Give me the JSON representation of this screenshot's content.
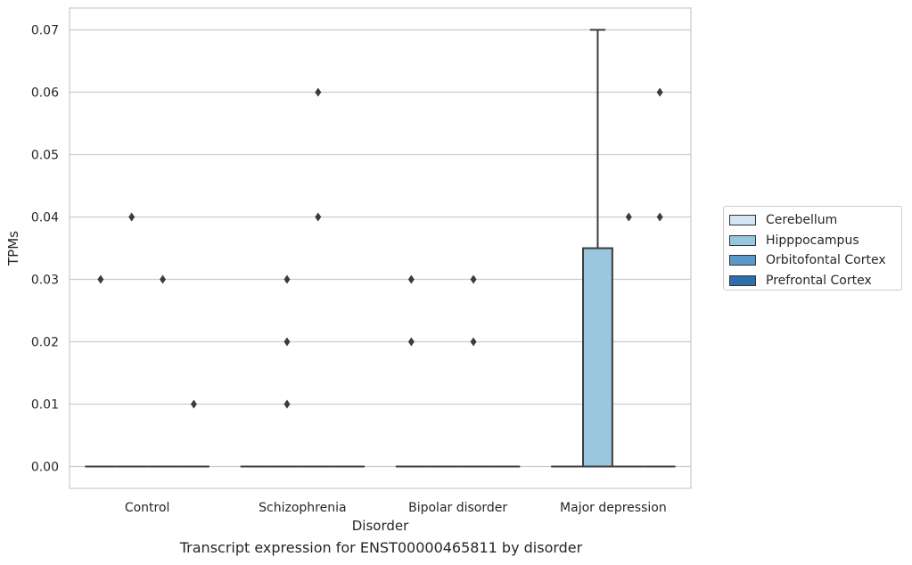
{
  "caption": "Transcript expression for ENST00000465811 by disorder",
  "chart_data": {
    "type": "box",
    "xlabel": "Disorder",
    "ylabel": "TPMs",
    "categories": [
      "Control",
      "Schizophrenia",
      "Bipolar disorder",
      "Major depression"
    ],
    "ylim": [
      -0.0035,
      0.0735
    ],
    "yticks": [
      "0.00",
      "0.01",
      "0.02",
      "0.03",
      "0.04",
      "0.05",
      "0.06",
      "0.07"
    ],
    "ytick_values": [
      0,
      0.01,
      0.02,
      0.03,
      0.04,
      0.05,
      0.06,
      0.07
    ],
    "grid": true,
    "legend_position": "outside-right",
    "series": [
      {
        "name": "Cerebellum",
        "color": "#d3e4f3"
      },
      {
        "name": "Hipppocampus",
        "color": "#9ac7e0"
      },
      {
        "name": "Orbitofontal Cortex",
        "color": "#5a9ac9"
      },
      {
        "name": "Prefrontal Cortex",
        "color": "#2c6fac"
      }
    ],
    "boxes": [
      {
        "category": "Control",
        "series": "Cerebellum",
        "q1": 0,
        "median": 0,
        "q3": 0,
        "whisker_low": 0,
        "whisker_high": 0,
        "outliers": [
          0.03
        ]
      },
      {
        "category": "Control",
        "series": "Hipppocampus",
        "q1": 0,
        "median": 0,
        "q3": 0,
        "whisker_low": 0,
        "whisker_high": 0,
        "outliers": [
          0.04
        ]
      },
      {
        "category": "Control",
        "series": "Orbitofontal Cortex",
        "q1": 0,
        "median": 0,
        "q3": 0,
        "whisker_low": 0,
        "whisker_high": 0,
        "outliers": [
          0.03
        ]
      },
      {
        "category": "Control",
        "series": "Prefrontal Cortex",
        "q1": 0,
        "median": 0,
        "q3": 0,
        "whisker_low": 0,
        "whisker_high": 0,
        "outliers": [
          0.01
        ]
      },
      {
        "category": "Schizophrenia",
        "series": "Cerebellum",
        "q1": 0,
        "median": 0,
        "q3": 0,
        "whisker_low": 0,
        "whisker_high": 0,
        "outliers": []
      },
      {
        "category": "Schizophrenia",
        "series": "Hipppocampus",
        "q1": 0,
        "median": 0,
        "q3": 0,
        "whisker_low": 0,
        "whisker_high": 0,
        "outliers": [
          0.01,
          0.02,
          0.03
        ]
      },
      {
        "category": "Schizophrenia",
        "series": "Orbitofontal Cortex",
        "q1": 0,
        "median": 0,
        "q3": 0,
        "whisker_low": 0,
        "whisker_high": 0,
        "outliers": [
          0.04,
          0.06
        ]
      },
      {
        "category": "Schizophrenia",
        "series": "Prefrontal Cortex",
        "q1": 0,
        "median": 0,
        "q3": 0,
        "whisker_low": 0,
        "whisker_high": 0,
        "outliers": []
      },
      {
        "category": "Bipolar disorder",
        "series": "Cerebellum",
        "q1": 0,
        "median": 0,
        "q3": 0,
        "whisker_low": 0,
        "whisker_high": 0,
        "outliers": [
          0.02,
          0.03
        ]
      },
      {
        "category": "Bipolar disorder",
        "series": "Hipppocampus",
        "q1": 0,
        "median": 0,
        "q3": 0,
        "whisker_low": 0,
        "whisker_high": 0,
        "outliers": []
      },
      {
        "category": "Bipolar disorder",
        "series": "Orbitofontal Cortex",
        "q1": 0,
        "median": 0,
        "q3": 0,
        "whisker_low": 0,
        "whisker_high": 0,
        "outliers": [
          0.02,
          0.03
        ]
      },
      {
        "category": "Bipolar disorder",
        "series": "Prefrontal Cortex",
        "q1": 0,
        "median": 0,
        "q3": 0,
        "whisker_low": 0,
        "whisker_high": 0,
        "outliers": []
      },
      {
        "category": "Major depression",
        "series": "Cerebellum",
        "q1": 0,
        "median": 0,
        "q3": 0,
        "whisker_low": 0,
        "whisker_high": 0,
        "outliers": []
      },
      {
        "category": "Major depression",
        "series": "Hipppocampus",
        "q1": 0,
        "median": 0,
        "q3": 0.035,
        "whisker_low": 0,
        "whisker_high": 0.07,
        "outliers": []
      },
      {
        "category": "Major depression",
        "series": "Orbitofontal Cortex",
        "q1": 0,
        "median": 0,
        "q3": 0,
        "whisker_low": 0,
        "whisker_high": 0,
        "outliers": [
          0.04
        ]
      },
      {
        "category": "Major depression",
        "series": "Prefrontal Cortex",
        "q1": 0,
        "median": 0,
        "q3": 0,
        "whisker_low": 0,
        "whisker_high": 0,
        "outliers": [
          0.04,
          0.06
        ]
      }
    ]
  }
}
